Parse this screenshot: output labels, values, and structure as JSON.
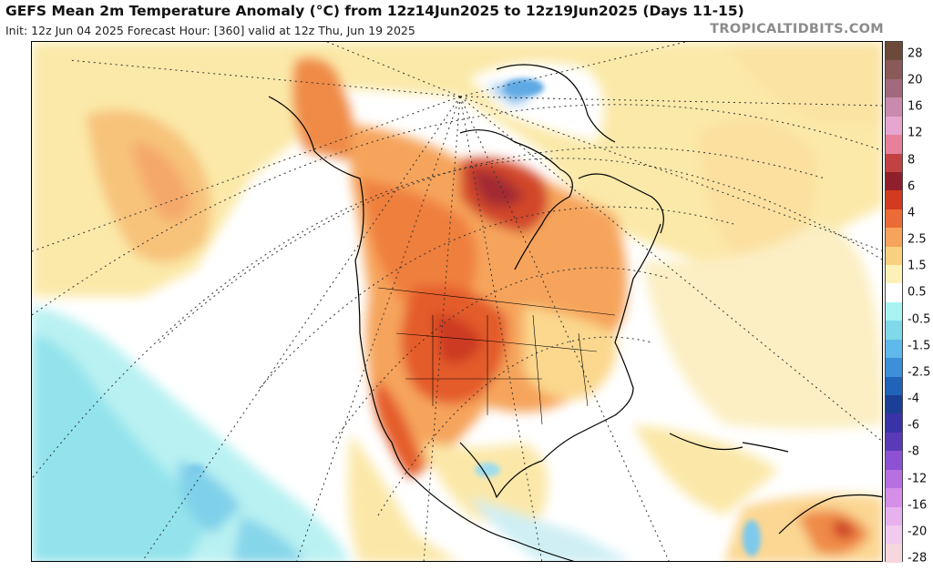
{
  "header": {
    "title": "GEFS Mean 2m Temperature Anomaly (°C) from 12z14Jun2025 to 12z19Jun2025 (Days 11-15)",
    "subtitle": "Init: 12z Jun 04 2025   Forecast Hour: [360]   valid at 12z Thu, Jun 19 2025",
    "brand": "TROPICALTIDBITS.COM"
  },
  "map": {
    "variable": "2m temperature anomaly",
    "units": "°C",
    "projection": "polar stereographic",
    "region": "North America",
    "ocean_color": "#ffffff",
    "coastline_color": "#000000",
    "graticule_color": "#333333"
  },
  "colorbar": {
    "labels": [
      "28",
      "20",
      "16",
      "12",
      "8",
      "6",
      "4",
      "2.5",
      "1.5",
      "0.5",
      "-0.5",
      "-1.5",
      "-2.5",
      "-4",
      "-6",
      "-8",
      "-12",
      "-16",
      "-20",
      "-28"
    ],
    "colors": [
      "#6b4a3a",
      "#8a5a58",
      "#a06a7c",
      "#c98aad",
      "#e6a6cf",
      "#e7809a",
      "#c24244",
      "#8f1f2c",
      "#d23b1f",
      "#ec6a35",
      "#f6a35b",
      "#f8d17f",
      "#fdf1b7",
      "#ffffff",
      "#a9f3f3",
      "#7fd9e8",
      "#5fb9ea",
      "#3c8fd8",
      "#2063b9",
      "#1b3f94",
      "#3a33a8",
      "#5b3ab8",
      "#8d52d3",
      "#b770e0",
      "#d58fe8",
      "#e7b1ef",
      "#f2c9ef",
      "#f7d7de"
    ]
  }
}
